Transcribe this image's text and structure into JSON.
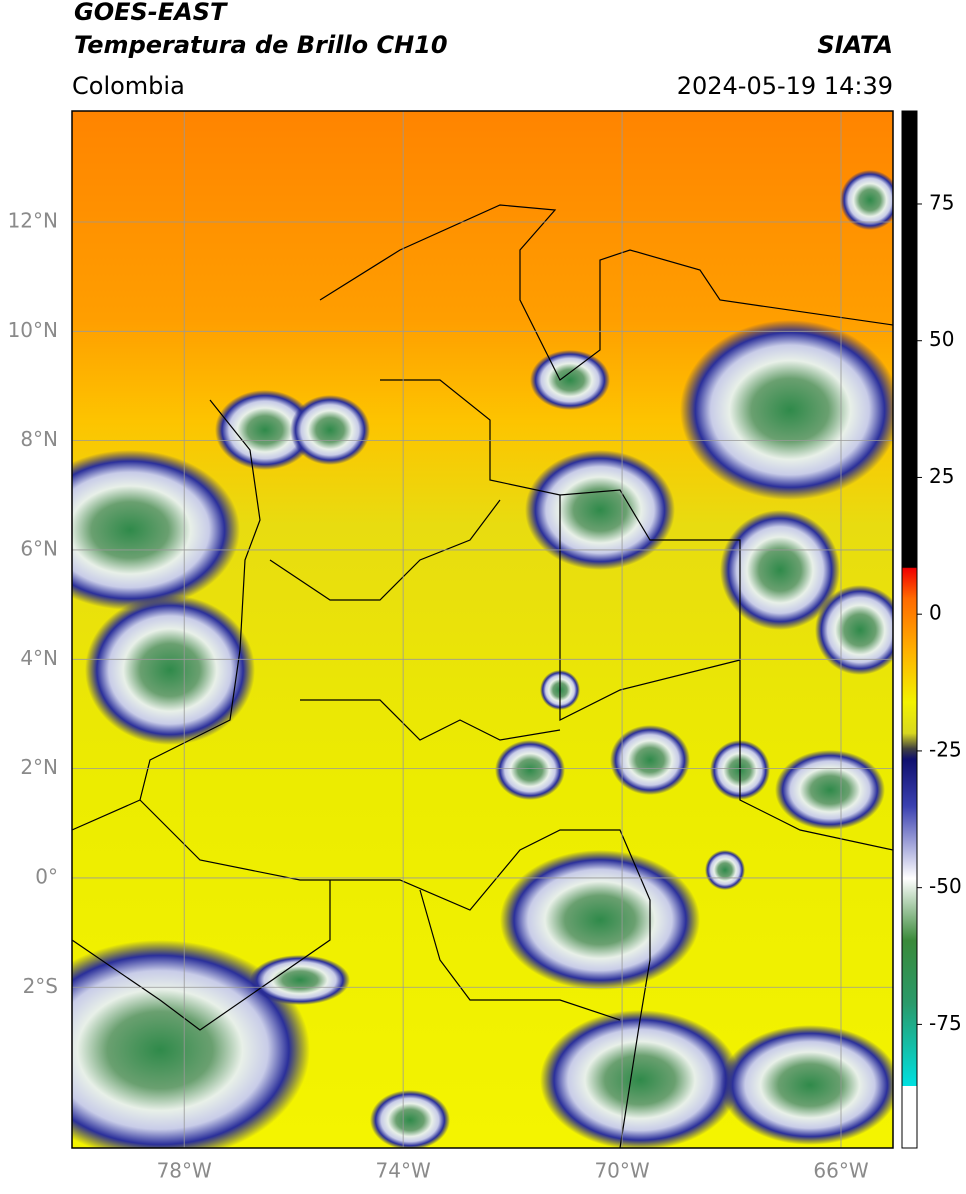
{
  "header": {
    "satellite": "GOES-EAST",
    "product": "Temperatura de Brillo CH10",
    "agency": "SIATA",
    "region": "Colombia",
    "datetime": "2024-05-19 14:39"
  },
  "map": {
    "xlim": [
      -80.05,
      -65.05
    ],
    "ylim": [
      -4.94,
      14.03
    ],
    "xticks": [
      {
        "value": -78,
        "label": "78°W"
      },
      {
        "value": -74,
        "label": "74°W"
      },
      {
        "value": -70,
        "label": "70°W"
      },
      {
        "value": -66,
        "label": "66°W"
      }
    ],
    "yticks": [
      {
        "value": 12,
        "label": "12°N"
      },
      {
        "value": 10,
        "label": "10°N"
      },
      {
        "value": 8,
        "label": "8°N"
      },
      {
        "value": 6,
        "label": "6°N"
      },
      {
        "value": 4,
        "label": "4°N"
      },
      {
        "value": 2,
        "label": "2°N"
      },
      {
        "value": 0,
        "label": "0°"
      },
      {
        "value": -2,
        "label": "2°S"
      }
    ],
    "grid": true
  },
  "colorbar": {
    "lim": [
      -97.6,
      92
    ],
    "ticks": [
      75,
      50,
      25,
      0,
      -25,
      -50,
      -75
    ]
  }
}
